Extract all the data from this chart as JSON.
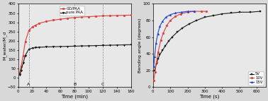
{
  "left": {
    "xlabel": "Time (min)",
    "ylabel": "M_water/M_d",
    "xlim": [
      0,
      160
    ],
    "ylim": [
      -50,
      400
    ],
    "yticks": [
      -50,
      0,
      50,
      100,
      150,
      200,
      250,
      300,
      350,
      400
    ],
    "xticks": [
      0,
      20,
      40,
      60,
      80,
      100,
      120,
      140,
      160
    ],
    "vlines": [
      15,
      80,
      120
    ],
    "vline_labels": [
      "A",
      "B",
      "C"
    ],
    "go_paa_x": [
      2,
      4,
      7,
      10,
      15,
      20,
      25,
      30,
      40,
      50,
      60,
      70,
      80,
      90,
      100,
      110,
      120,
      130,
      140,
      150,
      160
    ],
    "go_paa_y": [
      25,
      60,
      120,
      195,
      255,
      275,
      285,
      295,
      305,
      312,
      317,
      322,
      326,
      329,
      331,
      333,
      335,
      336,
      337,
      338,
      339
    ],
    "pure_paa_x": [
      2,
      4,
      7,
      10,
      15,
      20,
      25,
      30,
      40,
      50,
      60,
      70,
      80,
      90,
      100,
      110,
      120,
      130,
      140,
      150,
      160
    ],
    "pure_paa_y": [
      15,
      40,
      80,
      120,
      155,
      160,
      163,
      165,
      167,
      168,
      169,
      170,
      171,
      172,
      173,
      174,
      175,
      176,
      177,
      178,
      179
    ],
    "go_paa_color": "#d94040",
    "pure_paa_color": "#1a1a1a",
    "legend_go": "GO/PAA",
    "legend_pure": "pure PAA",
    "bg_color": "#e8e8e8"
  },
  "right": {
    "xlabel": "Time (s)",
    "ylabel": "Bending angle (degrees)",
    "xlim": [
      0,
      650
    ],
    "ylim": [
      0,
      100
    ],
    "yticks": [
      0,
      20,
      40,
      60,
      80,
      100
    ],
    "xticks": [
      0,
      100,
      200,
      300,
      400,
      500,
      600
    ],
    "v5_x": [
      10,
      20,
      30,
      40,
      55,
      70,
      90,
      110,
      140,
      170,
      210,
      250,
      300,
      350,
      400,
      450,
      500,
      560,
      620
    ],
    "v5_y": [
      20,
      28,
      34,
      39,
      44,
      49,
      55,
      60,
      66,
      71,
      76,
      80,
      84,
      86,
      88,
      89,
      90,
      90,
      91
    ],
    "v10_x": [
      5,
      12,
      20,
      30,
      45,
      60,
      80,
      100,
      130,
      160,
      200,
      240,
      280,
      310
    ],
    "v10_y": [
      8,
      18,
      30,
      42,
      56,
      65,
      74,
      80,
      85,
      88,
      90,
      91,
      91,
      91
    ],
    "v15_x": [
      5,
      10,
      18,
      28,
      40,
      55,
      75,
      100,
      130,
      165,
      200,
      240
    ],
    "v15_y": [
      25,
      37,
      53,
      64,
      73,
      79,
      84,
      87,
      89,
      90,
      91,
      91
    ],
    "v5_color": "#1a1a1a",
    "v10_color": "#d94040",
    "v15_color": "#2244cc",
    "legend_5v": "5V",
    "legend_10v": "10V",
    "legend_15v": "15V",
    "bg_color": "#e8e8e8"
  }
}
